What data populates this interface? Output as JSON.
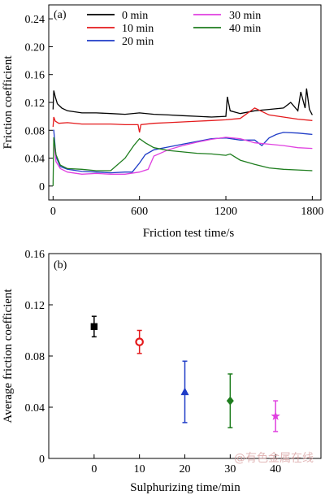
{
  "watermark": "@有色金属在线",
  "chart_data": [
    {
      "id": "a",
      "type": "line",
      "panel_label": "(a)",
      "xlabel": "Friction test time/s",
      "ylabel": "Friction coefficient",
      "xlim": [
        -30,
        1860
      ],
      "ylim": [
        -0.02,
        0.26
      ],
      "xticks": [
        0,
        600,
        1200,
        1800
      ],
      "yticks": [
        0,
        0.04,
        0.08,
        0.12,
        0.16,
        0.2,
        0.24
      ],
      "legend_position": "top",
      "series": [
        {
          "name": "0 min",
          "color": "#000000",
          "x": [
            0,
            5,
            15,
            30,
            60,
            100,
            200,
            300,
            400,
            500,
            600,
            700,
            800,
            900,
            1000,
            1100,
            1200,
            1210,
            1230,
            1300,
            1400,
            1500,
            1600,
            1650,
            1700,
            1720,
            1750,
            1760,
            1780,
            1800
          ],
          "y": [
            0.11,
            0.137,
            0.128,
            0.118,
            0.112,
            0.108,
            0.105,
            0.105,
            0.104,
            0.103,
            0.105,
            0.103,
            0.102,
            0.101,
            0.1,
            0.099,
            0.1,
            0.128,
            0.108,
            0.104,
            0.108,
            0.11,
            0.112,
            0.12,
            0.108,
            0.135,
            0.112,
            0.14,
            0.11,
            0.102
          ]
        },
        {
          "name": "10 min",
          "color": "#e41a1c",
          "x": [
            0,
            5,
            15,
            40,
            100,
            200,
            300,
            400,
            500,
            590,
            600,
            610,
            700,
            800,
            900,
            1000,
            1100,
            1200,
            1300,
            1400,
            1500,
            1600,
            1700,
            1800
          ],
          "y": [
            0.085,
            0.099,
            0.093,
            0.09,
            0.091,
            0.089,
            0.089,
            0.089,
            0.088,
            0.088,
            0.077,
            0.088,
            0.09,
            0.091,
            0.092,
            0.093,
            0.094,
            0.095,
            0.097,
            0.112,
            0.102,
            0.099,
            0.096,
            0.094
          ]
        },
        {
          "name": "20 min",
          "color": "#1f3cc7",
          "x": [
            0,
            5,
            20,
            50,
            100,
            200,
            300,
            400,
            500,
            550,
            600,
            640,
            700,
            800,
            900,
            1000,
            1100,
            1200,
            1300,
            1400,
            1450,
            1500,
            1550,
            1600,
            1700,
            1800
          ],
          "y": [
            0.08,
            0.08,
            0.042,
            0.028,
            0.024,
            0.021,
            0.02,
            0.019,
            0.02,
            0.02,
            0.033,
            0.045,
            0.052,
            0.056,
            0.06,
            0.064,
            0.068,
            0.069,
            0.066,
            0.066,
            0.058,
            0.069,
            0.074,
            0.077,
            0.076,
            0.074
          ]
        },
        {
          "name": "30 min",
          "color": "#e040e0",
          "x": [
            0,
            5,
            20,
            50,
            100,
            200,
            300,
            400,
            500,
            600,
            660,
            700,
            800,
            900,
            1000,
            1100,
            1200,
            1300,
            1400,
            1500,
            1600,
            1700,
            1800
          ],
          "y": [
            0.065,
            0.065,
            0.035,
            0.025,
            0.02,
            0.017,
            0.018,
            0.017,
            0.017,
            0.02,
            0.024,
            0.043,
            0.052,
            0.058,
            0.063,
            0.067,
            0.07,
            0.068,
            0.062,
            0.06,
            0.058,
            0.055,
            0.054
          ]
        },
        {
          "name": "40 min",
          "color": "#1e7d1e",
          "x": [
            0,
            5,
            20,
            50,
            100,
            200,
            300,
            400,
            500,
            560,
            600,
            640,
            700,
            800,
            900,
            1000,
            1100,
            1200,
            1230,
            1300,
            1400,
            1500,
            1600,
            1700,
            1800
          ],
          "y": [
            0.0,
            0.07,
            0.045,
            0.03,
            0.025,
            0.024,
            0.022,
            0.022,
            0.04,
            0.058,
            0.068,
            0.062,
            0.055,
            0.051,
            0.049,
            0.047,
            0.046,
            0.044,
            0.046,
            0.037,
            0.031,
            0.026,
            0.024,
            0.023,
            0.022
          ]
        }
      ]
    },
    {
      "id": "b",
      "type": "scatter",
      "panel_label": "(b)",
      "xlabel": "Sulphurizing time/min",
      "ylabel": "Average friction coefficient",
      "xlim": [
        -10,
        50
      ],
      "ylim": [
        0,
        0.16
      ],
      "xticks": [
        0,
        10,
        20,
        30,
        40
      ],
      "yticks": [
        0,
        0.04,
        0.08,
        0.12,
        0.16
      ],
      "points": [
        {
          "x": 0,
          "y": 0.103,
          "err": 0.008,
          "marker": "square",
          "color": "#000000"
        },
        {
          "x": 10,
          "y": 0.091,
          "err": 0.009,
          "marker": "circle",
          "color": "#e41a1c"
        },
        {
          "x": 20,
          "y": 0.052,
          "err": 0.024,
          "marker": "triangle",
          "color": "#1f3cc7"
        },
        {
          "x": 30,
          "y": 0.045,
          "err": 0.021,
          "marker": "diamond",
          "color": "#1e7d1e"
        },
        {
          "x": 40,
          "y": 0.033,
          "err": 0.012,
          "marker": "star",
          "color": "#e040e0"
        }
      ]
    }
  ]
}
